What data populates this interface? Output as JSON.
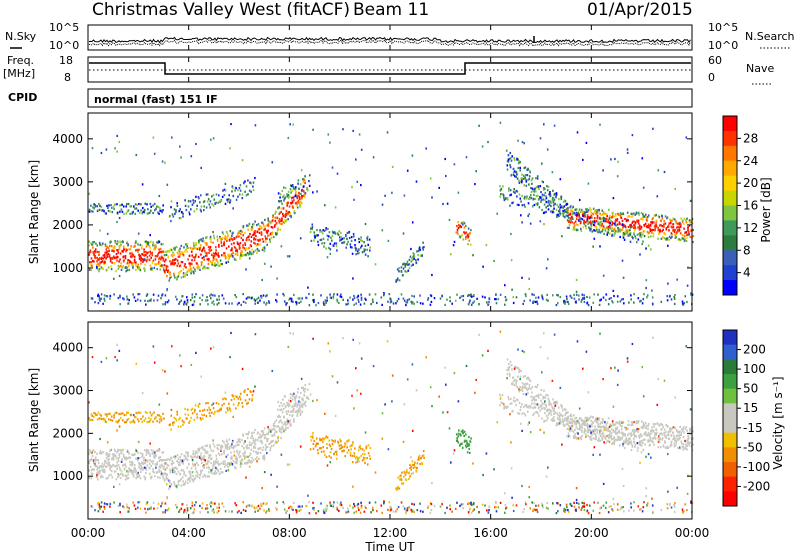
{
  "header": {
    "station": "Christmas Valley West (fitACF)",
    "beam": "Beam 11",
    "date": "01/Apr/2015"
  },
  "top_panels": {
    "nsky_label": "N.Sky",
    "nsky_tick_hi": "10^5",
    "nsky_tick_lo": "10^0",
    "nsearch_label": "N.Search",
    "nsearch_tick_hi": "10^5",
    "nsearch_tick_lo": "10^0",
    "freq_label_1": "Freq.",
    "freq_label_2": "[MHz]",
    "freq_tick_hi": "18",
    "freq_tick_lo": "8",
    "nave_label": "Nave",
    "nave_tick_hi": "60",
    "nave_tick_lo": "0",
    "cpid_label": "CPID",
    "cpid_value": "normal (fast) 151 IF"
  },
  "chart_data": [
    {
      "type": "heatmap",
      "name": "power",
      "ylabel": "Slant Range [km]",
      "yticks": [
        "4000",
        "3000",
        "2000",
        "1000"
      ],
      "colorbar": {
        "label": "Power [dB]",
        "ticks": [
          "28",
          "24",
          "20",
          "16",
          "12",
          "8",
          "4"
        ],
        "colors": [
          "#ff0000",
          "#ff3300",
          "#ff7700",
          "#ffaa00",
          "#ffd000",
          "#c8d600",
          "#7fc640",
          "#3e9a5a",
          "#2c7c3e",
          "#3a5fb8",
          "#2040d0",
          "#0000ff"
        ]
      }
    },
    {
      "type": "heatmap",
      "name": "velocity",
      "ylabel": "Slant Range [km]",
      "yticks": [
        "4000",
        "3000",
        "2000",
        "1000"
      ],
      "colorbar": {
        "label": "Velocity [m s⁻¹]",
        "ticks": [
          "200",
          "100",
          "50",
          "15",
          "-15",
          "-50",
          "-100",
          "-200"
        ],
        "colors": [
          "#2030c0",
          "#3060d0",
          "#2a7a3a",
          "#3aa040",
          "#70c040",
          "#c8c8c0",
          "#c8c8c0",
          "#f0c000",
          "#f09000",
          "#f06000",
          "#ff2000",
          "#ff0000"
        ]
      }
    }
  ],
  "xaxis": {
    "label": "Time UT",
    "ticks": [
      "00:00",
      "04:00",
      "08:00",
      "12:00",
      "16:00",
      "20:00",
      "00:00"
    ]
  }
}
